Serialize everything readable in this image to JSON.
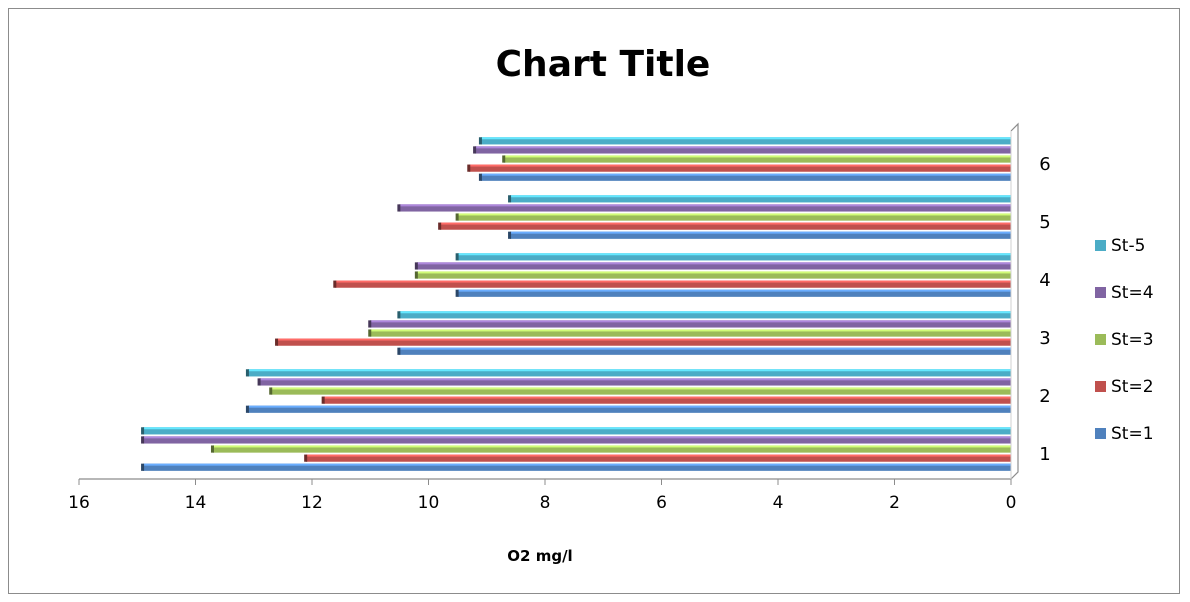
{
  "chart_data": {
    "type": "bar",
    "orientation": "horizontal",
    "x_axis_reversed": true,
    "title": "Chart Title",
    "xlabel": "O2 mg/l",
    "ylabel": "",
    "xlim": [
      0,
      16
    ],
    "x_ticks": [
      "0",
      "2",
      "4",
      "6",
      "8",
      "10",
      "12",
      "14",
      "16"
    ],
    "categories": [
      "1",
      "2",
      "3",
      "4",
      "5",
      "6"
    ],
    "series": [
      {
        "name": "St=1",
        "color": "#4F81BD",
        "values": [
          14.9,
          13.1,
          10.5,
          9.5,
          8.6,
          9.1
        ]
      },
      {
        "name": "St=2",
        "color": "#C0504D",
        "values": [
          12.1,
          11.8,
          12.6,
          11.6,
          9.8,
          9.3
        ]
      },
      {
        "name": "St=3",
        "color": "#9BBB59",
        "values": [
          13.7,
          12.7,
          11.0,
          10.2,
          9.5,
          8.7
        ]
      },
      {
        "name": "St=4",
        "color": "#8064A2",
        "values": [
          14.9,
          12.9,
          11.0,
          10.2,
          10.5,
          9.2
        ]
      },
      {
        "name": "St-5",
        "color": "#4BACC6",
        "values": [
          14.9,
          13.1,
          10.5,
          9.5,
          8.6,
          9.1
        ]
      }
    ],
    "legend": {
      "position": "right",
      "order": [
        "St-5",
        "St=4",
        "St=3",
        "St=2",
        "St=1"
      ]
    },
    "grid": false
  }
}
